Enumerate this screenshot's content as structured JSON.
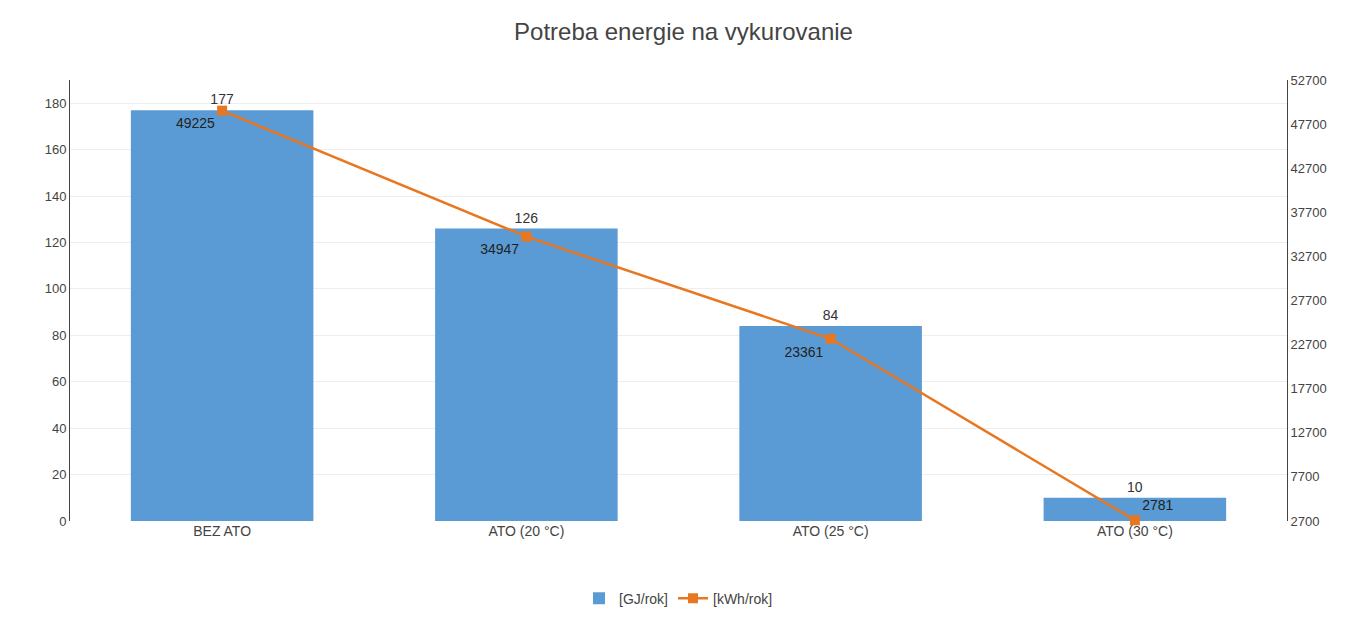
{
  "chart_data": {
    "type": "bar",
    "title": "Potreba energie na vykurovanie",
    "categories": [
      "BEZ ATO",
      "ATO (20 °C)",
      "ATO (25 °C)",
      "ATO (30 °C)"
    ],
    "series": [
      {
        "name": "[GJ/rok]",
        "type": "bar",
        "color": "#5B9BD5",
        "values": [
          177,
          126,
          84,
          10
        ]
      },
      {
        "name": "[kWh/rok]",
        "type": "line",
        "axis": "y2",
        "color": "#E87722",
        "marker": "square",
        "values": [
          49225,
          34947,
          23361,
          2781
        ]
      }
    ],
    "ylim": [
      0,
      190
    ],
    "yticks": [
      0,
      20,
      40,
      60,
      80,
      100,
      120,
      140,
      160,
      180
    ],
    "y2lim": [
      2700,
      52700
    ],
    "y2ticks": [
      2700,
      7700,
      12700,
      17700,
      22700,
      27700,
      32700,
      37700,
      42700,
      47700,
      52700
    ],
    "grid": true,
    "legend": "bottom",
    "data_labels": true
  }
}
